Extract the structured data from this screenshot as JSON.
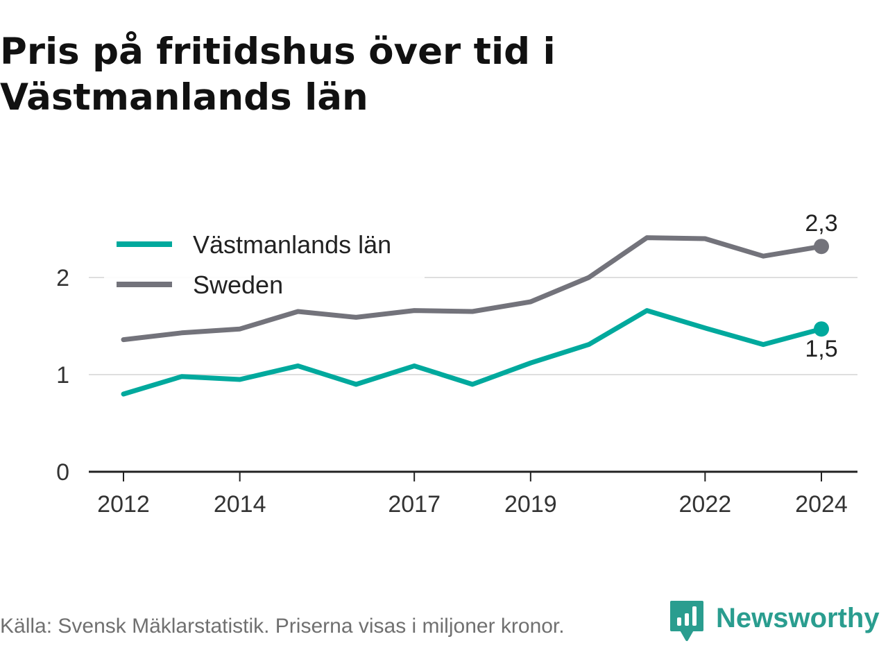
{
  "title": "Pris på fritidshus över tid i Västmanlands län",
  "source": "Källa: Svensk Mäklarstatistik. Priserna visas i miljoner kronor.",
  "brand": {
    "name": "Newsworthy",
    "icon": "newsworthy-logo-icon",
    "color": "#2a9d8f"
  },
  "colors": {
    "vastmanland": "#00a99d",
    "sweden": "#73737b",
    "grid": "#dedede",
    "axis": "#222222"
  },
  "chart_data": {
    "type": "line",
    "title": "Pris på fritidshus över tid i Västmanlands län",
    "x": [
      2012,
      2013,
      2014,
      2015,
      2016,
      2017,
      2018,
      2019,
      2020,
      2021,
      2022,
      2023,
      2024
    ],
    "x_ticks": [
      "2012",
      "2014",
      "2017",
      "2019",
      "2022",
      "2024"
    ],
    "y_ticks": [
      "0",
      "1",
      "2"
    ],
    "ylim": [
      0,
      2.5
    ],
    "grid": "horizontal",
    "legend": "top-left",
    "series": [
      {
        "name": "Västmanlands län",
        "color": "#00a99d",
        "values": [
          0.8,
          0.98,
          0.95,
          1.09,
          0.9,
          1.09,
          0.9,
          1.12,
          1.31,
          1.66,
          1.48,
          1.31,
          1.47
        ],
        "end_label": "1,5"
      },
      {
        "name": "Sweden",
        "color": "#73737b",
        "values": [
          1.36,
          1.43,
          1.47,
          1.65,
          1.59,
          1.66,
          1.65,
          1.75,
          2.0,
          2.41,
          2.4,
          2.22,
          2.32
        ],
        "end_label": "2,3"
      }
    ]
  }
}
